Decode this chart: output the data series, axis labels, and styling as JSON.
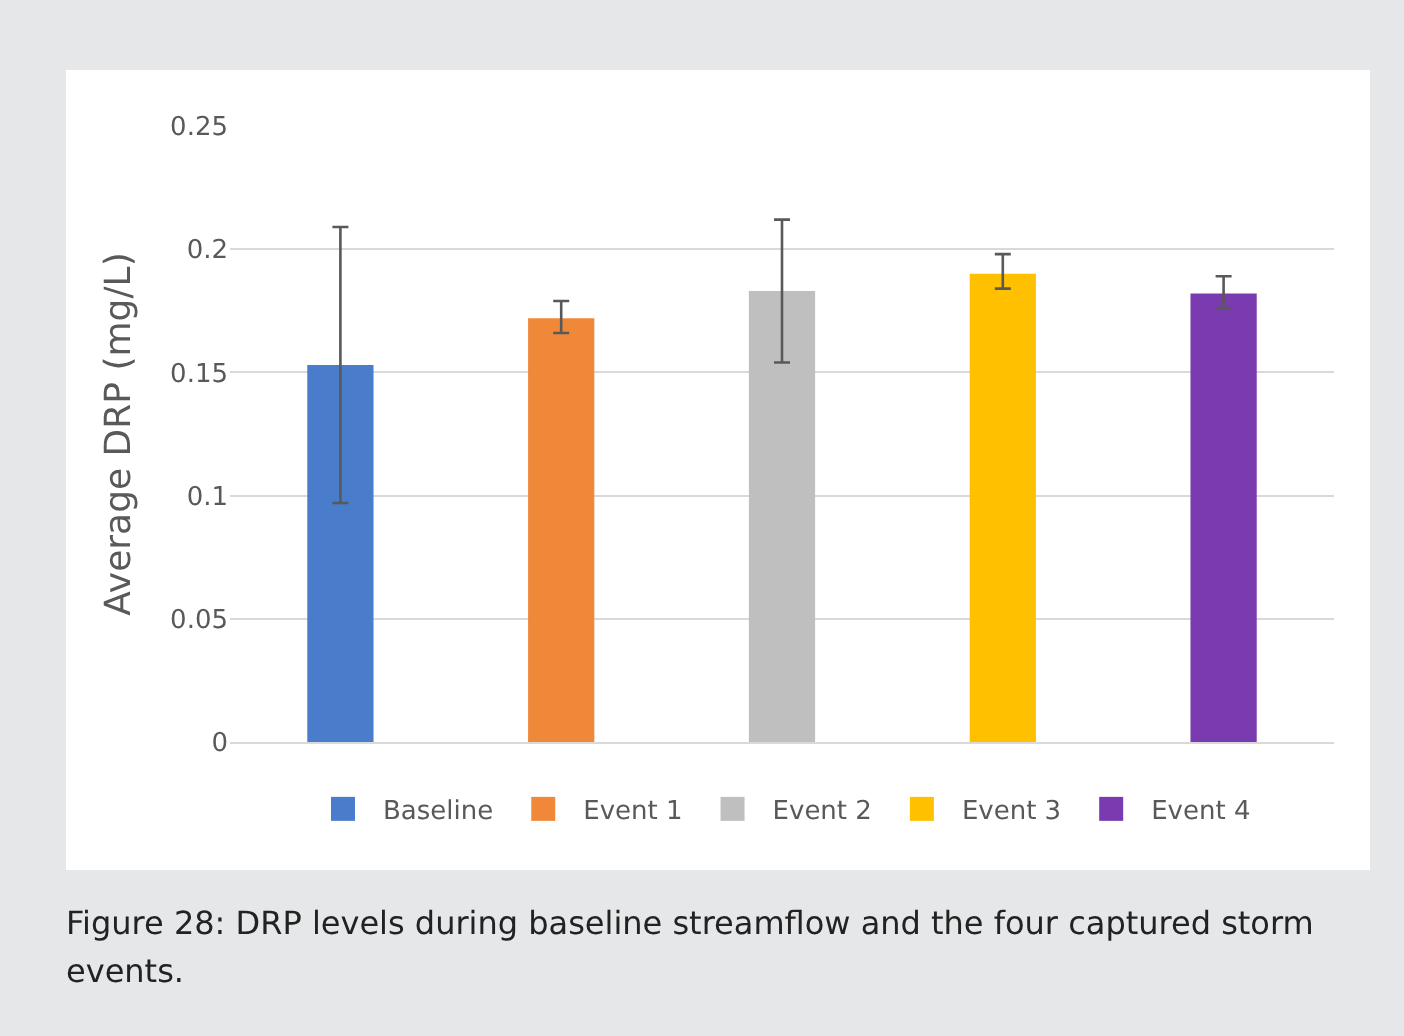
{
  "chart_data": {
    "type": "bar",
    "ylabel": "Average DRP (mg/L)",
    "categories": [
      null,
      null,
      null,
      null,
      null
    ],
    "series": [
      {
        "name": "Baseline",
        "color": "#4a7ccc",
        "values": [
          0.153,
          null,
          null,
          null,
          null
        ],
        "errors": [
          [
            0.097,
            0.209
          ],
          null,
          null,
          null,
          null
        ]
      },
      {
        "name": "Event 1",
        "color": "#f0883a",
        "values": [
          null,
          0.172,
          null,
          null,
          null
        ],
        "errors": [
          null,
          [
            0.166,
            0.179
          ],
          null,
          null,
          null
        ]
      },
      {
        "name": "Event 2",
        "color": "#bfbfbf",
        "values": [
          null,
          null,
          0.183,
          null,
          null
        ],
        "errors": [
          null,
          null,
          [
            0.154,
            0.212
          ],
          null,
          null
        ]
      },
      {
        "name": "Event 3",
        "color": "#ffc000",
        "values": [
          null,
          null,
          null,
          0.19,
          null
        ],
        "errors": [
          null,
          null,
          null,
          [
            0.184,
            0.198
          ],
          null
        ]
      },
      {
        "name": "Event 4",
        "color": "#7a3ab0",
        "values": [
          null,
          null,
          null,
          null,
          0.182
        ],
        "errors": [
          null,
          null,
          null,
          null,
          [
            0.176,
            0.189
          ]
        ]
      }
    ],
    "ylim": [
      0,
      0.25
    ],
    "yticks": [
      0,
      0.05,
      0.1,
      0.15,
      0.2,
      0.25
    ],
    "grid": "y",
    "legend": "bottom",
    "annotations": [
      "Figure 28: DRP levels during baseline streamflow and the four captured storm events."
    ]
  }
}
